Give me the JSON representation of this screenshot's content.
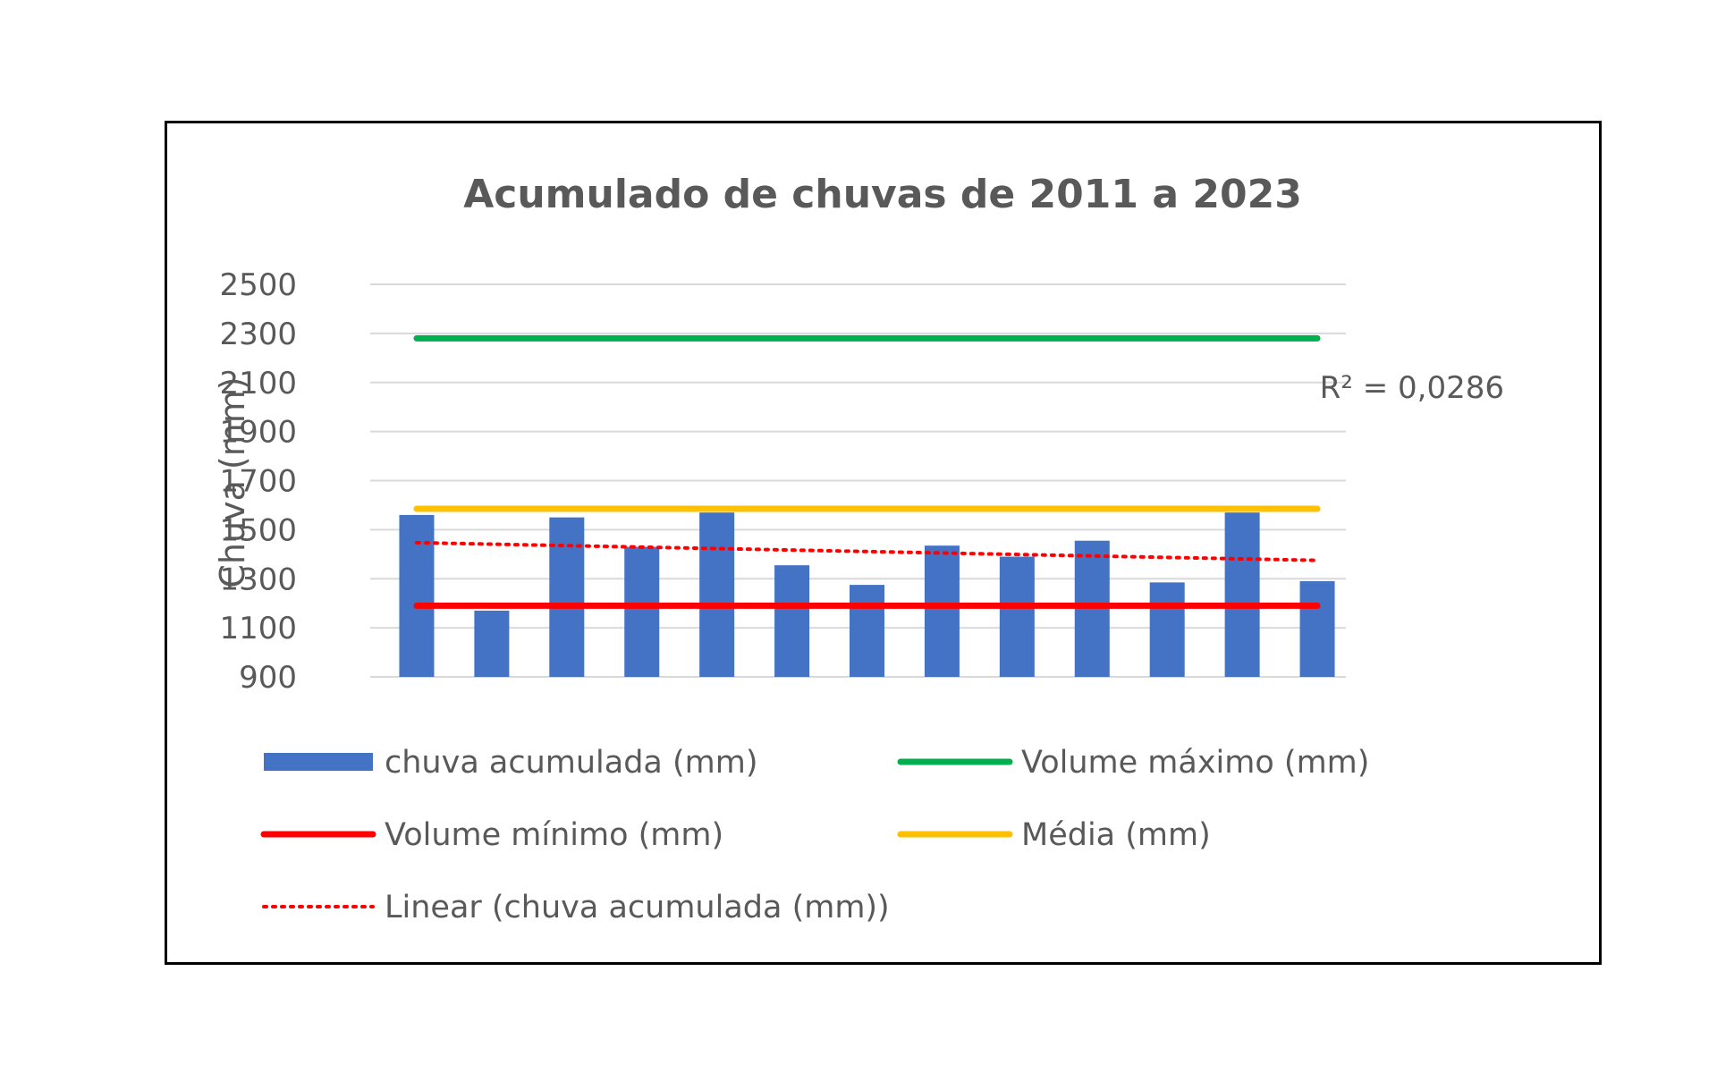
{
  "chart_data": {
    "type": "bar",
    "title": "Acumulado de chuvas de 2011 a 2023",
    "xlabel": "",
    "ylabel": "Chuva (mm)",
    "ylim": [
      900,
      2500
    ],
    "yticks": [
      "2500",
      "2300",
      "2100",
      "1900",
      "1700",
      "1500",
      "1300",
      "1100",
      "900"
    ],
    "grid": true,
    "legend_position": "bottom",
    "categories": [
      "",
      "",
      "",
      "",
      "",
      "",
      "",
      "",
      "",
      "",
      "",
      "",
      ""
    ],
    "series": [
      {
        "name": "chuva acumulada (mm)",
        "kind": "bar",
        "color": "#4472C4",
        "values": [
          1560,
          1170,
          1550,
          1430,
          1570,
          1355,
          1275,
          1435,
          1390,
          1455,
          1285,
          1570,
          1290
        ]
      },
      {
        "name": "Volume máximo (mm)",
        "kind": "line",
        "color": "#00B050",
        "value": 2280
      },
      {
        "name": "Volume mínimo (mm)",
        "kind": "line",
        "color": "#FF0000",
        "value": 1190
      },
      {
        "name": "Média (mm)",
        "kind": "line",
        "color": "#FFC000",
        "value": 1585
      },
      {
        "name": "Linear (chuva acumulada (mm))",
        "kind": "trendline",
        "color": "#FF0000",
        "start": 1447,
        "end": 1375
      }
    ],
    "annotations": [
      "R² = 0,0286"
    ]
  }
}
